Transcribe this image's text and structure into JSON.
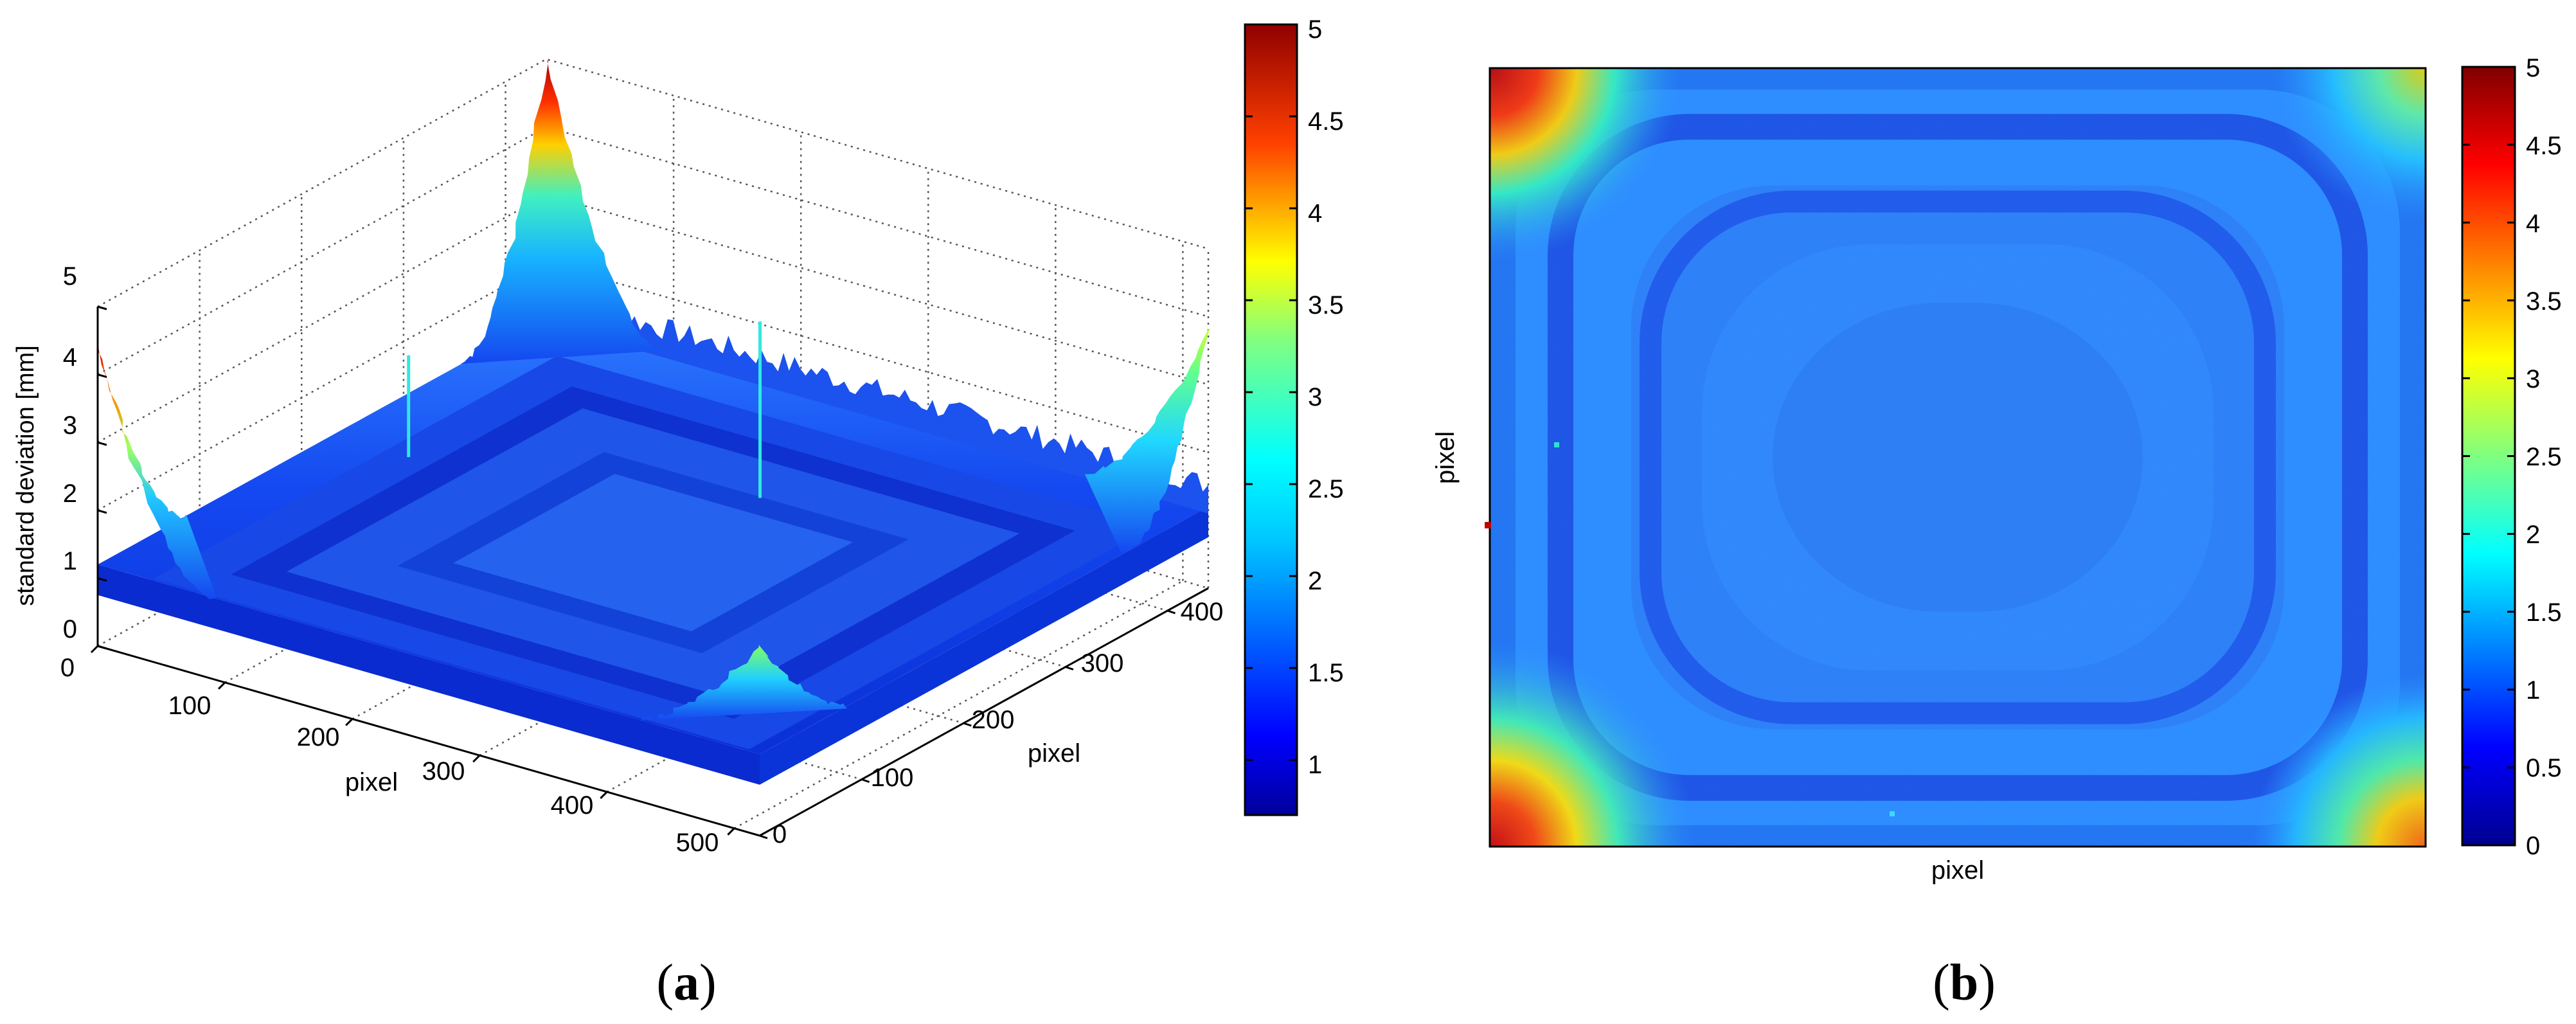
{
  "chart_data": [
    {
      "id": "a",
      "type": "surface3d",
      "panel_label": "(a)",
      "panel_label_letter": "a",
      "zlabel": "standard deviation [mm]",
      "xlabel": "pixel",
      "ylabel": "pixel",
      "x_ticks": [
        "0",
        "100",
        "200",
        "300",
        "400",
        "500"
      ],
      "y_ticks": [
        "0",
        "100",
        "200",
        "300",
        "400"
      ],
      "z_ticks": [
        "0",
        "1",
        "2",
        "3",
        "4",
        "5"
      ],
      "xlim": [
        0,
        520
      ],
      "ylim": [
        0,
        440
      ],
      "zlim": [
        0,
        5
      ],
      "grid": true,
      "surface": {
        "baseline_std": 1.2,
        "corner_peaks": [
          {
            "corner": "far",
            "max_value": 5.0
          },
          {
            "corner": "left",
            "max_value": 4.4
          },
          {
            "corner": "right",
            "max_value": 3.8
          },
          {
            "corner": "front",
            "max_value": 2.8
          }
        ],
        "spikes": [
          {
            "x": 280,
            "y": 300,
            "value": 3.8
          },
          {
            "x": 60,
            "y": 230,
            "value": 2.7
          }
        ]
      },
      "colorbar": {
        "ticks": [
          "1",
          "1.5",
          "2",
          "2.5",
          "3",
          "3.5",
          "4",
          "4.5",
          "5"
        ],
        "range": [
          0.7,
          5
        ],
        "colormap": "jet"
      }
    },
    {
      "id": "b",
      "type": "heatmap",
      "panel_label": "(b)",
      "panel_label_letter": "b",
      "xlabel": "pixel",
      "ylabel": "pixel",
      "colorbar": {
        "ticks": [
          "0",
          "0.5",
          "1",
          "1.5",
          "2",
          "2.5",
          "3",
          "3.5",
          "4",
          "4.5",
          "5"
        ],
        "range": [
          0,
          5
        ],
        "colormap": "jet"
      },
      "field": {
        "center_value": 1.3,
        "ring_value": 0.95,
        "edge_value": 1.6,
        "corner_peak": 5.0
      }
    }
  ],
  "colors": {
    "jet_dark_blue": "#00008f",
    "jet_blue": "#0000ff",
    "jet_cyan": "#00ffff",
    "jet_yellow": "#ffff00",
    "jet_red": "#ff0000",
    "jet_dark_red": "#800000",
    "axis": "#000000",
    "grid": "#555555"
  }
}
